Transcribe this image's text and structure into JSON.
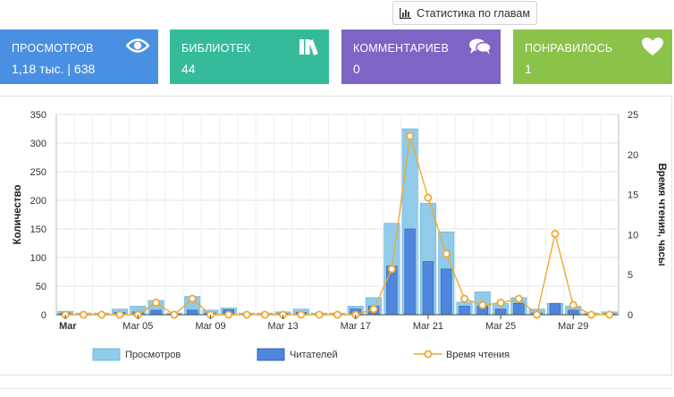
{
  "header": {
    "chapter_stats_label": "Статистика по главам",
    "chapter_stats_icon": "bar-chart-icon"
  },
  "cards": [
    {
      "title": "ПРОСМОТРОВ",
      "value": "1,18 тыс. | 638",
      "color": "#4a90e2",
      "icon": "eye-icon"
    },
    {
      "title": "БИБЛИОТЕК",
      "value": "44",
      "color": "#36bb9a",
      "icon": "books-icon"
    },
    {
      "title": "КОММЕНТАРИЕВ",
      "value": "0",
      "color": "#7e64c4",
      "icon": "comments-icon"
    },
    {
      "title": "ПОНРАВИЛОСЬ",
      "value": "1",
      "color": "#8bc34a",
      "icon": "heart-icon"
    }
  ],
  "chart_data": {
    "type": "bar",
    "x_tick_labels": [
      "Mar",
      "Mar 05",
      "Mar 09",
      "Mar 13",
      "Mar 17",
      "Mar 21",
      "Mar 25",
      "Mar 29"
    ],
    "ylabel": "Количество",
    "ylabel_right": "Время чтения, часы",
    "ylim": [
      0,
      350
    ],
    "yticks": [
      "0",
      "50",
      "100",
      "150",
      "200",
      "250",
      "300",
      "350"
    ],
    "ylim_right": [
      0,
      25
    ],
    "yticks_right": [
      "0",
      "5",
      "10",
      "15",
      "20",
      "25"
    ],
    "grid": true,
    "legend_position": "bottom",
    "days": [
      1,
      2,
      3,
      4,
      5,
      6,
      7,
      8,
      9,
      10,
      11,
      12,
      13,
      14,
      15,
      16,
      17,
      18,
      19,
      20,
      21,
      22,
      23,
      24,
      25,
      26,
      27,
      28,
      29,
      30,
      31
    ],
    "series": [
      {
        "name": "Просмотров",
        "kind": "bar",
        "color": "#90cbe9",
        "values": [
          6,
          3,
          3,
          10,
          15,
          25,
          3,
          32,
          8,
          12,
          3,
          3,
          5,
          10,
          3,
          3,
          15,
          30,
          160,
          325,
          195,
          145,
          22,
          40,
          20,
          30,
          10,
          20,
          15,
          3,
          5
        ]
      },
      {
        "name": "Читателей",
        "kind": "bar",
        "color": "#4f86de",
        "values": [
          3,
          1,
          1,
          4,
          5,
          8,
          1,
          8,
          3,
          9,
          1,
          1,
          2,
          4,
          1,
          1,
          10,
          15,
          85,
          150,
          93,
          80,
          15,
          15,
          10,
          20,
          3,
          20,
          8,
          1,
          2
        ]
      },
      {
        "name": "Время чтения",
        "kind": "line",
        "color": "#f0a830",
        "axis": "right",
        "values": [
          0,
          0,
          0,
          0,
          0,
          1.5,
          0,
          2,
          0,
          0,
          0,
          0,
          0,
          0,
          0,
          0,
          0,
          0.7,
          5.7,
          22.3,
          14.6,
          7.6,
          2,
          1.2,
          1.5,
          2,
          0,
          10.1,
          1.2,
          0,
          0
        ]
      }
    ]
  }
}
